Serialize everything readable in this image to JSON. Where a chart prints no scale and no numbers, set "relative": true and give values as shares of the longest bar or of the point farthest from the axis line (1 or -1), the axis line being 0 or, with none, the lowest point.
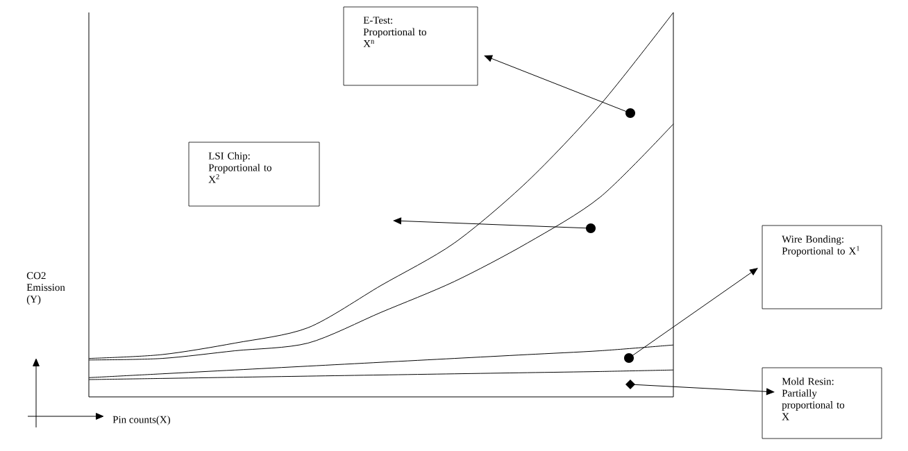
{
  "chart_data": {
    "type": "line",
    "relative": true,
    "xlabel": "Pin counts(X)",
    "ylabel": "CO2 Emission (Y)",
    "categories": [
      null,
      null,
      null,
      null,
      null,
      null,
      null,
      null,
      null
    ],
    "series": [
      {
        "color": "#000000",
        "values": [
          0.1,
          0.11,
          0.14,
          0.18,
          0.29,
          0.4,
          0.56,
          0.76,
          1
        ]
      },
      {
        "color": "#000000",
        "values": [
          0.096,
          0.1,
          0.12,
          0.14,
          0.22,
          0.3,
          0.4,
          0.52,
          0.71
        ]
      },
      {
        "color": "#000000",
        "values": [
          0.05,
          0.06,
          0.07,
          0.08,
          0.09,
          0.1,
          0.11,
          0.12,
          0.135
        ]
      },
      {
        "color": "#000000",
        "values": [
          0.045,
          0.048,
          0.051,
          0.054,
          0.057,
          0.06,
          0.063,
          0.066,
          0.07
        ]
      }
    ],
    "annotations": [
      "E-Test: Proportional to X$^{n}$",
      "LSI Chip: Proportional to X$^{2}$",
      "Wire Bonding: Proportional to X$^{1}$",
      "Mold Resin: Partially proportional to X"
    ],
    "grid": false,
    "marker": "none",
    "line_style": "solid"
  }
}
